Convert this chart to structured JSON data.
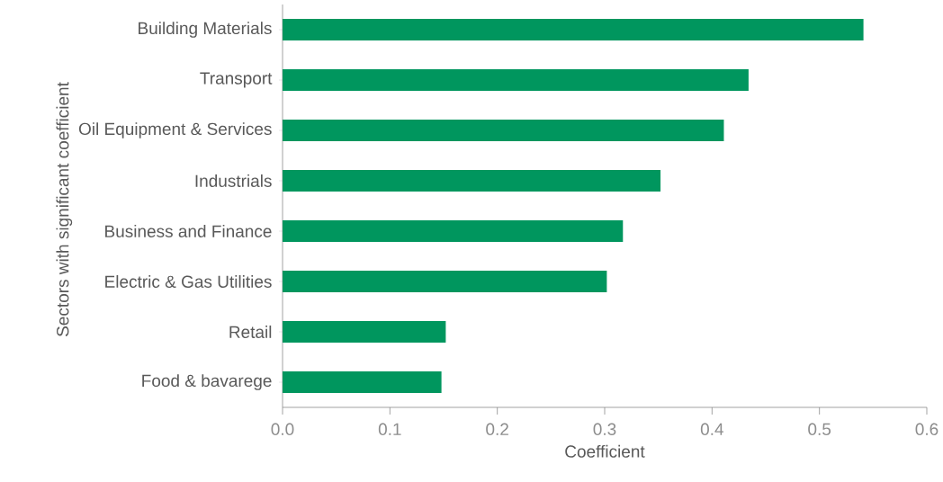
{
  "chart_data": {
    "type": "bar",
    "orientation": "horizontal",
    "xlabel": "Coefficient",
    "ylabel": "Sectors with significant coefficient",
    "categories": [
      "Building Materials",
      "Transport",
      "Oil Equipment & Services",
      "Industrials",
      "Business and Finance",
      "Electric & Gas Utilities",
      "Retail",
      "Food & bavarege"
    ],
    "values": [
      0.541,
      0.434,
      0.411,
      0.352,
      0.317,
      0.302,
      0.152,
      0.148
    ],
    "color": "#00965e",
    "xlim": [
      0,
      0.6
    ],
    "xticks": [
      {
        "value": 0,
        "label": "0.0"
      },
      0.1,
      0.2,
      0.3,
      0.4,
      0.5,
      0.6
    ]
  }
}
